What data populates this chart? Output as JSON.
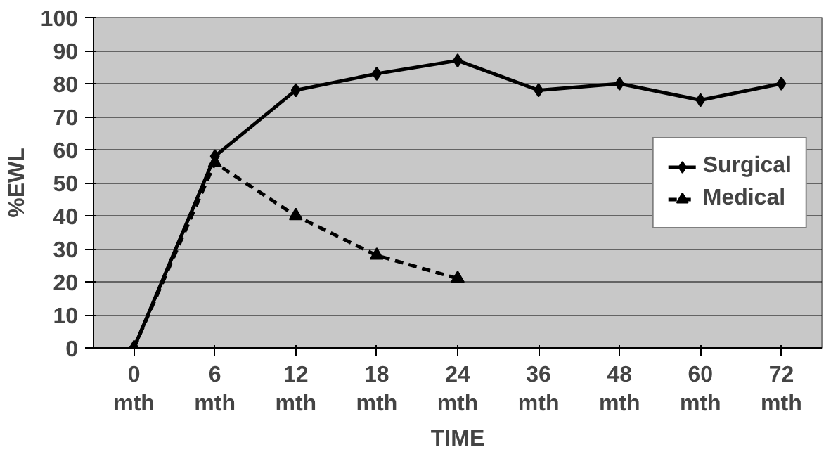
{
  "chart_data": {
    "type": "line",
    "xlabel": "TIME",
    "ylabel": "%EWL",
    "categories": [
      "0\nmth",
      "6\nmth",
      "12\nmth",
      "18\nmth",
      "24\nmth",
      "36\nmth",
      "48\nmth",
      "60\nmth",
      "72\nmth"
    ],
    "series": [
      {
        "name": "Surgical",
        "color": "#000000",
        "marker": "diamond",
        "line_style": "solid",
        "values": [
          0,
          58,
          78,
          83,
          87,
          78,
          80,
          75,
          80
        ]
      },
      {
        "name": "Medical",
        "color": "#000000",
        "marker": "triangle",
        "line_style": "dashed",
        "values": [
          0,
          56,
          40,
          28,
          21,
          null,
          null,
          null,
          null
        ]
      }
    ],
    "ylim": [
      0,
      100
    ],
    "yticks": [
      0,
      10,
      20,
      30,
      40,
      50,
      60,
      70,
      80,
      90,
      100
    ],
    "grid": "y",
    "legend": "right"
  }
}
